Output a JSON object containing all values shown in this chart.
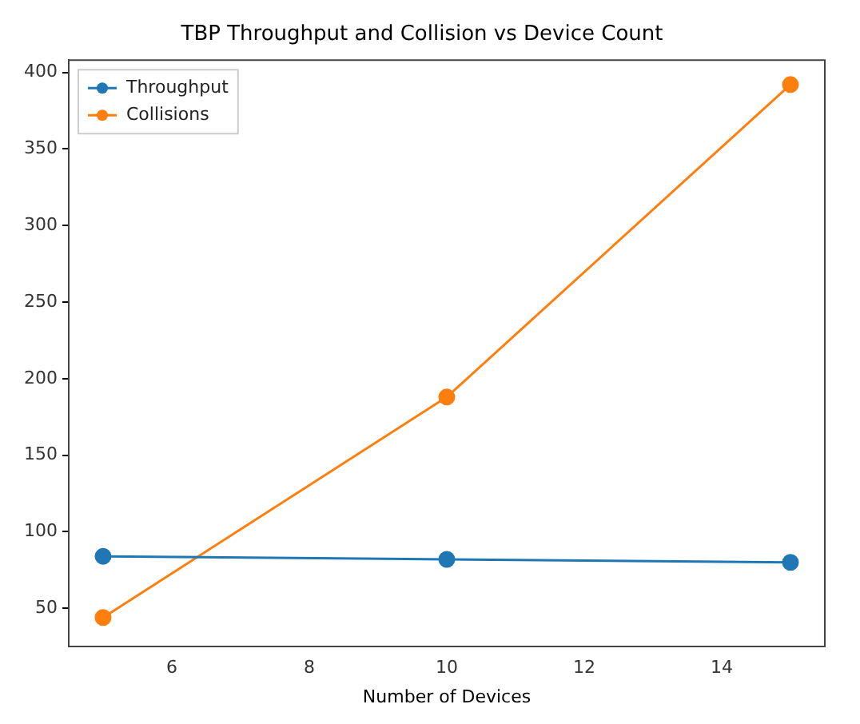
{
  "chart_data": {
    "type": "line",
    "title": "TBP Throughput and Collision vs Device Count",
    "xlabel": "Number of Devices",
    "x": [
      5,
      10,
      15
    ],
    "series": [
      {
        "name": "Throughput",
        "color": "#1f77b4",
        "values": [
          84,
          82,
          80
        ]
      },
      {
        "name": "Collisions",
        "color": "#ff7f0e",
        "values": [
          44,
          188,
          392
        ]
      }
    ],
    "xlim": [
      4.5,
      15.5
    ],
    "xticks": [
      6,
      8,
      10,
      12,
      14
    ],
    "ylim": [
      25,
      408
    ],
    "yticks": [
      50,
      100,
      150,
      200,
      250,
      300,
      350,
      400
    ],
    "legend": "top left",
    "marker": "circle",
    "grid": false
  }
}
